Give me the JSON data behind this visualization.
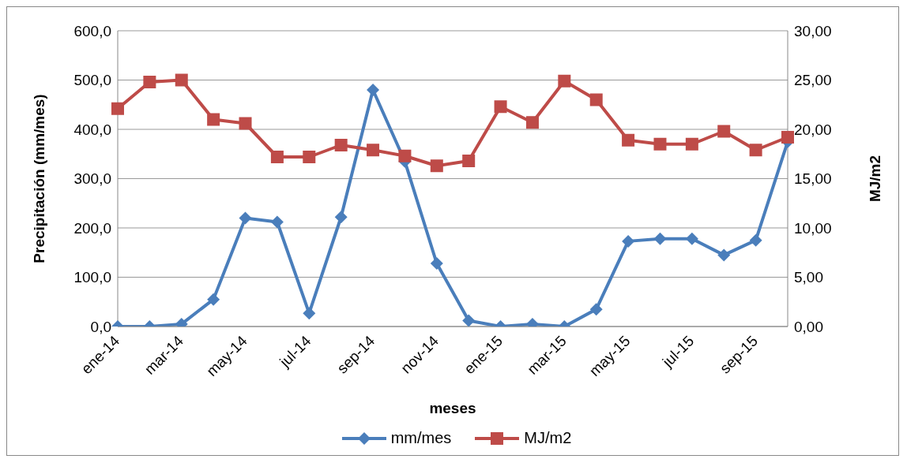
{
  "chart_data": {
    "type": "line",
    "xlabel": "meses",
    "ylabel": "Precipitación (mm/mes)",
    "y2label": "MJ/m2",
    "categories": [
      "ene-14",
      null,
      "mar-14",
      null,
      "may-14",
      null,
      "jul-14",
      null,
      "sep-14",
      null,
      "nov-14",
      null,
      "ene-15",
      null,
      "mar-15",
      null,
      "may-15",
      null,
      "jul-15",
      null,
      "sep-15",
      null
    ],
    "series": [
      {
        "name": "mm/mes",
        "color": "#4a7ebb",
        "marker": "diamond",
        "values": [
          0,
          0,
          5,
          55,
          220,
          212,
          27,
          222,
          480,
          335,
          128,
          12,
          0,
          5,
          0,
          35,
          173,
          178,
          178,
          145,
          175,
          375
        ]
      },
      {
        "name": "MJ/m2",
        "color": "#be4b48",
        "marker": "square",
        "axis": "y2",
        "values": [
          22.1,
          24.8,
          25.0,
          21.0,
          20.6,
          17.2,
          17.2,
          18.4,
          17.9,
          17.3,
          16.3,
          16.8,
          22.3,
          20.7,
          24.9,
          23.0,
          18.9,
          18.5,
          18.5,
          19.8,
          17.9,
          19.2
        ]
      }
    ],
    "ylim": [
      0,
      600
    ],
    "yticks": [
      {
        "value": 0,
        "label": "0,0"
      },
      {
        "value": 100,
        "label": "100,0"
      },
      {
        "value": 200,
        "label": "200,0"
      },
      {
        "value": 300,
        "label": "300,0"
      },
      {
        "value": 400,
        "label": "400,0"
      },
      {
        "value": 500,
        "label": "500,0"
      },
      {
        "value": 600,
        "label": "600,0"
      }
    ],
    "y2lim": [
      0,
      30
    ],
    "y2ticks": [
      {
        "value": 0,
        "label": "0,00"
      },
      {
        "value": 5,
        "label": "5,00"
      },
      {
        "value": 10,
        "label": "10,00"
      },
      {
        "value": 15,
        "label": "15,00"
      },
      {
        "value": 20,
        "label": "20,00"
      },
      {
        "value": 25,
        "label": "25,00"
      },
      {
        "value": 30,
        "label": "30,00"
      }
    ],
    "grid": "y",
    "legend": "bottom",
    "line_style": "solid"
  }
}
